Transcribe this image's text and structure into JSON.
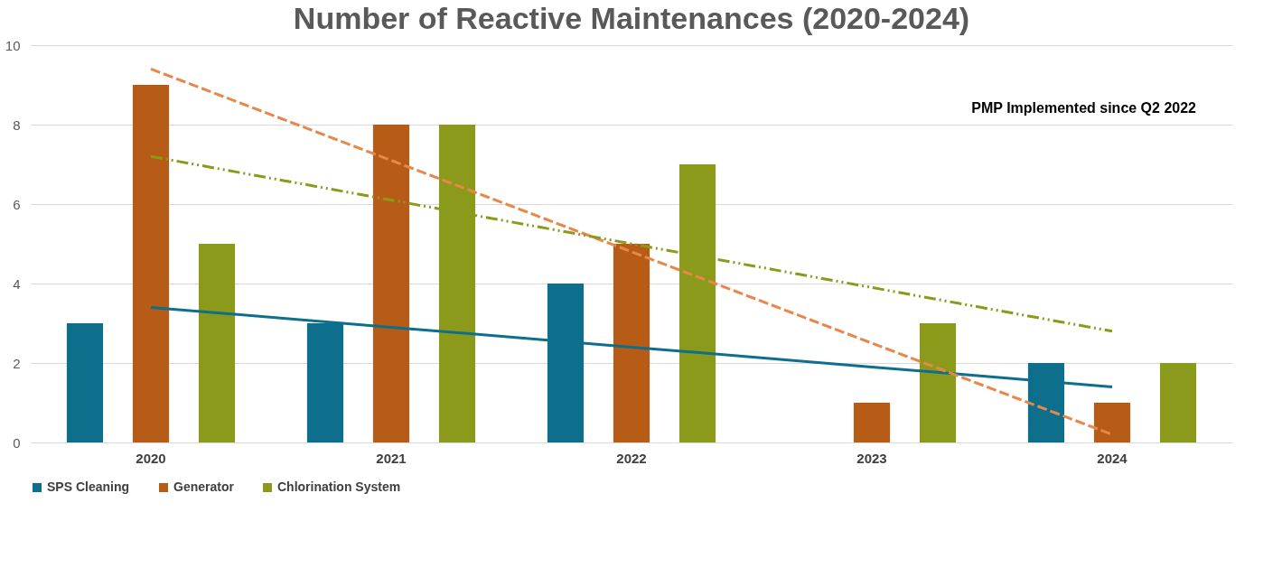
{
  "chart_data": {
    "type": "bar",
    "title": "Number of Reactive Maintenances (2020-2024)",
    "categories": [
      "2020",
      "2021",
      "2022",
      "2023",
      "2024"
    ],
    "series": [
      {
        "name": "SPS Cleaning",
        "color": "#0e6f8c",
        "values": [
          3,
          3,
          4,
          0,
          2
        ]
      },
      {
        "name": "Generator",
        "color": "#b65c16",
        "values": [
          9,
          8,
          5,
          1,
          1
        ]
      },
      {
        "name": "Chlorination System",
        "color": "#8c9a1c",
        "values": [
          5,
          8,
          7,
          3,
          2
        ]
      },
      {
        "type": "line",
        "color": "#0e6f8c",
        "line_style": "solid",
        "values": [
          3.4,
          2.9,
          2.4,
          1.9,
          1.4
        ]
      },
      {
        "type": "line",
        "color": "#e8874a",
        "line_style": "dashed",
        "values": [
          9.4,
          7.1,
          4.8,
          2.5,
          0.2
        ]
      },
      {
        "type": "line",
        "color": "#8c9a1c",
        "line_style": "dotted",
        "values": [
          7.2,
          6.1,
          5.0,
          3.9,
          2.8
        ]
      }
    ],
    "ylim": [
      0,
      10
    ],
    "yticks": [
      0,
      2,
      4,
      6,
      8,
      10
    ],
    "grid": "y",
    "legend": "bottom",
    "annotations": [
      "PMP Implemented since Q2 2022"
    ]
  }
}
